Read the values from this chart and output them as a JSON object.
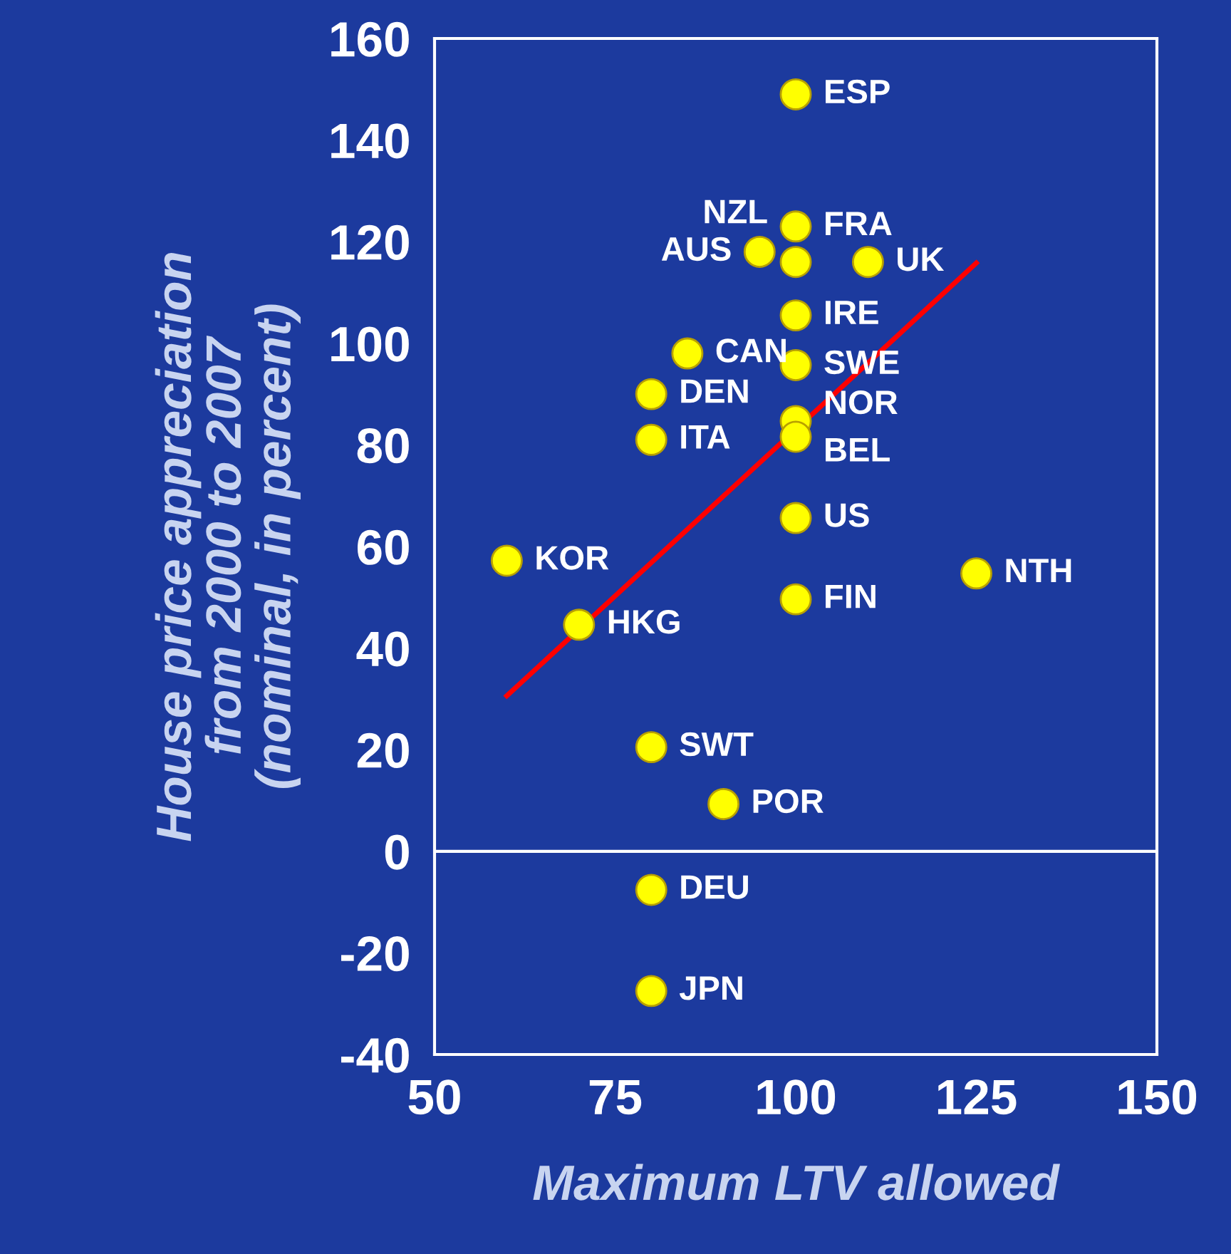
{
  "chart_data": {
    "type": "scatter",
    "xlabel": "Maximum LTV allowed",
    "ylabel": "House price appreciation\nfrom 2000 to 2007\n(nominal, in percent)",
    "xlim": [
      50,
      150
    ],
    "xticks": [
      50,
      75,
      100,
      125,
      150
    ],
    "ylim": [
      -40,
      160
    ],
    "yticks": [
      -40,
      -20,
      0,
      20,
      40,
      60,
      80,
      100,
      120,
      140,
      160
    ],
    "grid": false,
    "legend": false,
    "series": [
      {
        "type": "scatter",
        "color": "#ffff00",
        "marker": "circle",
        "x": [
          100,
          100,
          100,
          95,
          110,
          100,
          85,
          100,
          80,
          80,
          100,
          100,
          100,
          60,
          125,
          100,
          70,
          80,
          90,
          80,
          80
        ],
        "values": [
          149,
          123,
          116,
          118,
          116,
          105.5,
          98,
          95.7,
          90,
          81,
          84.7,
          81.6,
          65.6,
          57.2,
          54.7,
          49.6,
          44.6,
          20.5,
          9.3,
          -7.6,
          -27.5
        ]
      },
      {
        "type": "line",
        "color": "#ff0000",
        "x": [
          60,
          125
        ],
        "values": [
          30.6,
          115.8
        ]
      }
    ],
    "ref_lines": [
      {
        "axis": "y",
        "value": 0,
        "color": "#ffffff"
      }
    ],
    "annotations": [
      {
        "text": "ESP",
        "x": 100,
        "y": 149
      },
      {
        "text": "NZL",
        "x": 100,
        "y": 116
      },
      {
        "text": "FRA",
        "x": 100,
        "y": 123
      },
      {
        "text": "AUS",
        "x": 95,
        "y": 118
      },
      {
        "text": "UK",
        "x": 110,
        "y": 116
      },
      {
        "text": "IRE",
        "x": 100,
        "y": 105.5
      },
      {
        "text": "CAN",
        "x": 85,
        "y": 98
      },
      {
        "text": "SWE",
        "x": 100,
        "y": 95.7
      },
      {
        "text": "DEN",
        "x": 80,
        "y": 90
      },
      {
        "text": "ITA",
        "x": 80,
        "y": 81
      },
      {
        "text": "NOR",
        "x": 100,
        "y": 84.7
      },
      {
        "text": "BEL",
        "x": 100,
        "y": 81.6
      },
      {
        "text": "US",
        "x": 100,
        "y": 65.6
      },
      {
        "text": "KOR",
        "x": 60,
        "y": 57.2
      },
      {
        "text": "NTH",
        "x": 125,
        "y": 54.7
      },
      {
        "text": "FIN",
        "x": 100,
        "y": 49.6
      },
      {
        "text": "HKG",
        "x": 70,
        "y": 44.6
      },
      {
        "text": "SWT",
        "x": 80,
        "y": 20.5
      },
      {
        "text": "POR",
        "x": 90,
        "y": 9.3
      },
      {
        "text": "DEU",
        "x": 80,
        "y": -7.6
      },
      {
        "text": "JPN",
        "x": 80,
        "y": -27.5
      }
    ]
  }
}
